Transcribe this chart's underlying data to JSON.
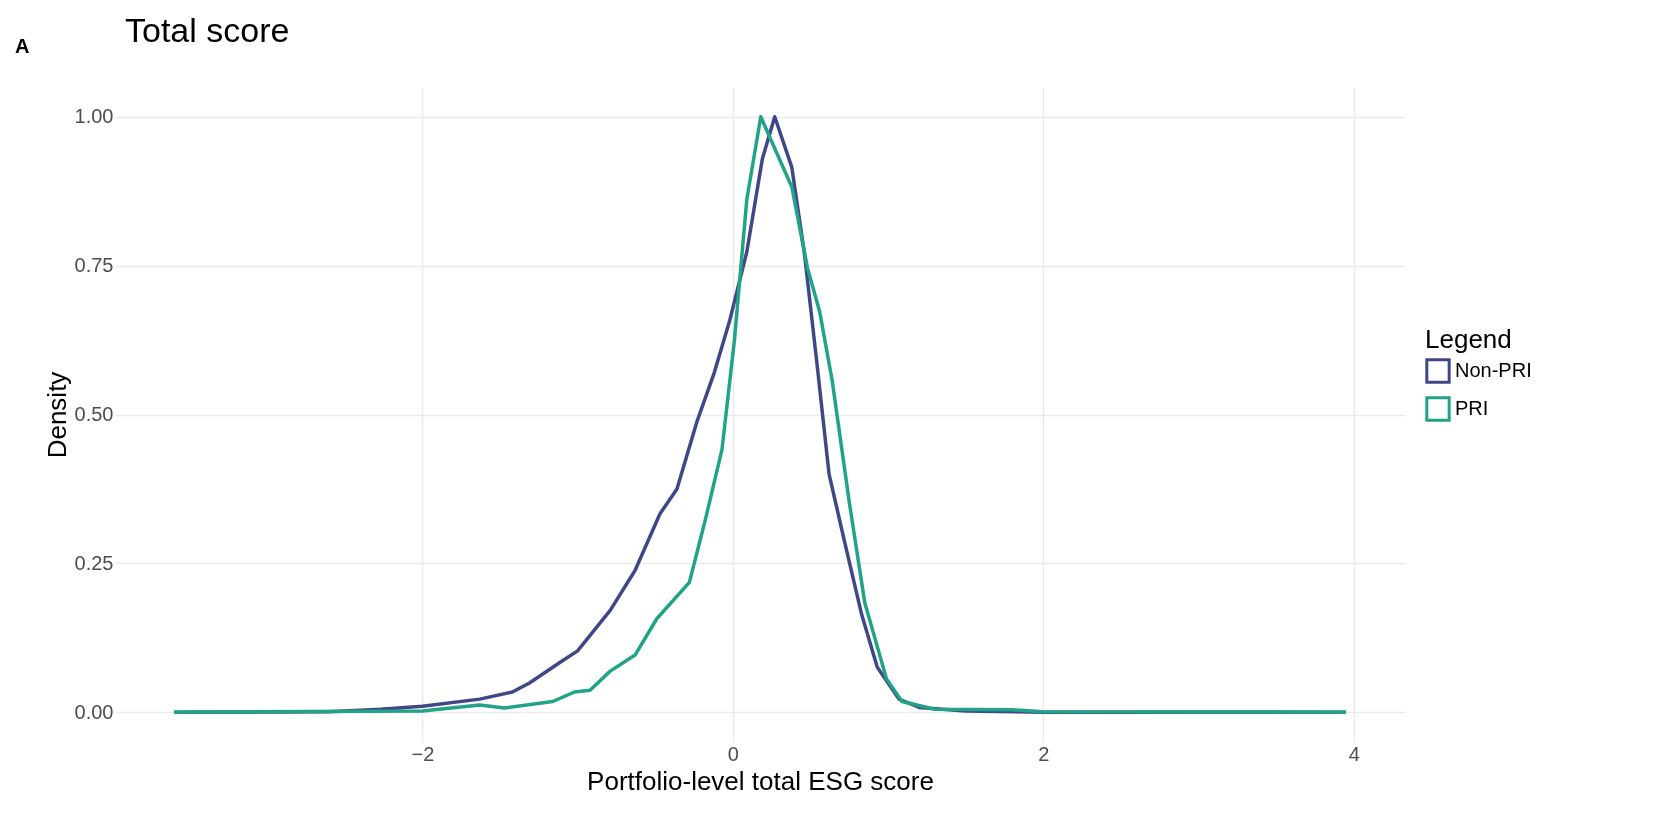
{
  "chart_data": {
    "type": "line",
    "title": "Total score",
    "xlabel": "Portfolio-level total ESG score",
    "ylabel": "Density",
    "legend_title": "Legend",
    "annotations": [
      "A"
    ],
    "series": [
      {
        "name": "Non-PRI",
        "color": "#404788",
        "x": [
          -3.6,
          -2.6,
          -2.27,
          -2.0,
          -1.63,
          -1.42,
          -1.31,
          -1.1,
          -1.0,
          -0.79,
          -0.63,
          -0.47,
          -0.36,
          -0.23,
          -0.12,
          -0.02,
          0.09,
          0.19,
          0.27,
          0.38,
          0.46,
          0.54,
          0.62,
          0.72,
          0.83,
          0.93,
          1.07,
          1.2,
          1.5,
          2.0,
          3.95
        ],
        "values": [
          0,
          0.001,
          0.005,
          0.01,
          0.022,
          0.034,
          0.049,
          0.086,
          0.103,
          0.171,
          0.238,
          0.333,
          0.375,
          0.489,
          0.57,
          0.658,
          0.773,
          0.929,
          1.0,
          0.915,
          0.773,
          0.59,
          0.4,
          0.286,
          0.164,
          0.076,
          0.022,
          0.008,
          0.002,
          0,
          0
        ]
      },
      {
        "name": "PRI",
        "color": "#20A386",
        "x": [
          -3.6,
          -2.0,
          -1.63,
          -1.47,
          -1.16,
          -1.02,
          -0.92,
          -0.79,
          -0.63,
          -0.49,
          -0.28,
          -0.18,
          -0.07,
          0.01,
          0.09,
          0.18,
          0.3,
          0.38,
          0.48,
          0.56,
          0.64,
          0.75,
          0.85,
          0.99,
          1.09,
          1.3,
          1.8,
          2.0,
          3.95
        ],
        "values": [
          0,
          0.002,
          0.012,
          0.007,
          0.018,
          0.034,
          0.037,
          0.069,
          0.096,
          0.157,
          0.218,
          0.32,
          0.441,
          0.624,
          0.861,
          1.0,
          0.929,
          0.882,
          0.747,
          0.672,
          0.557,
          0.353,
          0.184,
          0.056,
          0.018,
          0.005,
          0.004,
          0.001,
          0
        ]
      }
    ],
    "xlim": [
      -3.98,
      4.33
    ],
    "xticks": [
      -2,
      0,
      2,
      4
    ],
    "ylim": [
      -0.05,
      1.05
    ],
    "yticks": [
      {
        "value": 0,
        "label": "0.00"
      },
      {
        "value": 0.25,
        "label": "0.25"
      },
      {
        "value": 0.5,
        "label": "0.50"
      },
      {
        "value": 0.75,
        "label": "0.75"
      },
      {
        "value": 1,
        "label": "1.00"
      }
    ],
    "grid": true,
    "legend": "right",
    "line_style": "solid"
  }
}
